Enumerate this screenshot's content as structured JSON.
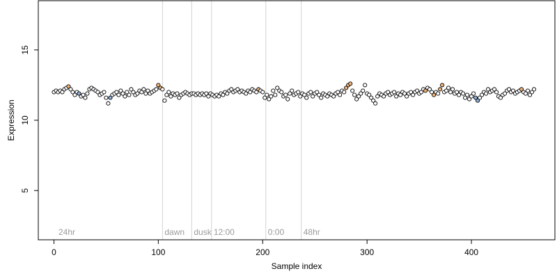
{
  "chart_data": {
    "type": "scatter",
    "xlabel": "Sample index",
    "ylabel": "Expression",
    "xlim": [
      -15,
      480
    ],
    "ylim": [
      1.5,
      18.5
    ],
    "xticks": [
      0,
      100,
      200,
      300,
      400
    ],
    "yticks": [
      5,
      10,
      15
    ],
    "grid": false,
    "legend": "none",
    "vertical_markers": [
      {
        "x": 104,
        "label": "dawn"
      },
      {
        "x": 132,
        "label": "dusk"
      },
      {
        "x": 151,
        "label": "12:00"
      },
      {
        "x": 203,
        "label": "0:00"
      },
      {
        "x": 237,
        "label": "48hr"
      }
    ],
    "corner_annotation": "24hr",
    "colors": {
      "normal": "#ffffff",
      "high": "#f4b77a",
      "low": "#8fb1dc",
      "marker_line": "#d3d3d3",
      "annotation_text": "#9a9a9a"
    },
    "points": [
      [
        0,
        12.0,
        "n"
      ],
      [
        2,
        12.1,
        "n"
      ],
      [
        4,
        12.0,
        "n"
      ],
      [
        6,
        12.1,
        "n"
      ],
      [
        8,
        12.0,
        "n"
      ],
      [
        10,
        12.2,
        "n"
      ],
      [
        12,
        12.3,
        "n"
      ],
      [
        14,
        12.4,
        "h"
      ],
      [
        16,
        12.2,
        "n"
      ],
      [
        18,
        12.0,
        "n"
      ],
      [
        20,
        11.8,
        "n"
      ],
      [
        22,
        12.0,
        "n"
      ],
      [
        24,
        11.9,
        "l"
      ],
      [
        26,
        11.7,
        "n"
      ],
      [
        28,
        11.8,
        "n"
      ],
      [
        30,
        11.6,
        "n"
      ],
      [
        32,
        11.9,
        "n"
      ],
      [
        34,
        12.2,
        "n"
      ],
      [
        36,
        12.3,
        "n"
      ],
      [
        38,
        12.2,
        "n"
      ],
      [
        40,
        12.1,
        "n"
      ],
      [
        42,
        12.0,
        "n"
      ],
      [
        44,
        11.8,
        "n"
      ],
      [
        46,
        11.9,
        "n"
      ],
      [
        48,
        12.0,
        "n"
      ],
      [
        50,
        11.6,
        "n"
      ],
      [
        52,
        11.2,
        "n"
      ],
      [
        54,
        11.6,
        "l"
      ],
      [
        56,
        11.8,
        "n"
      ],
      [
        58,
        11.9,
        "n"
      ],
      [
        60,
        12.0,
        "n"
      ],
      [
        62,
        11.8,
        "n"
      ],
      [
        64,
        12.1,
        "n"
      ],
      [
        66,
        11.9,
        "n"
      ],
      [
        68,
        11.7,
        "n"
      ],
      [
        70,
        12.0,
        "n"
      ],
      [
        72,
        11.8,
        "n"
      ],
      [
        74,
        12.2,
        "n"
      ],
      [
        76,
        12.0,
        "n"
      ],
      [
        78,
        11.8,
        "n"
      ],
      [
        80,
        11.9,
        "n"
      ],
      [
        82,
        12.1,
        "n"
      ],
      [
        84,
        12.0,
        "n"
      ],
      [
        86,
        12.2,
        "n"
      ],
      [
        88,
        11.9,
        "n"
      ],
      [
        90,
        12.1,
        "n"
      ],
      [
        92,
        11.9,
        "n"
      ],
      [
        94,
        12.0,
        "n"
      ],
      [
        96,
        12.1,
        "n"
      ],
      [
        98,
        12.2,
        "n"
      ],
      [
        100,
        12.5,
        "h"
      ],
      [
        102,
        12.3,
        "h"
      ],
      [
        104,
        12.2,
        "n"
      ],
      [
        106,
        11.4,
        "n"
      ],
      [
        108,
        11.8,
        "n"
      ],
      [
        110,
        12.0,
        "n"
      ],
      [
        112,
        11.7,
        "n"
      ],
      [
        114,
        11.9,
        "n"
      ],
      [
        116,
        11.8,
        "n"
      ],
      [
        118,
        11.9,
        "n"
      ],
      [
        120,
        11.6,
        "n"
      ],
      [
        122,
        11.8,
        "n"
      ],
      [
        124,
        11.9,
        "n"
      ],
      [
        126,
        12.0,
        "n"
      ],
      [
        128,
        11.9,
        "n"
      ],
      [
        130,
        11.8,
        "n"
      ],
      [
        132,
        11.9,
        "n"
      ],
      [
        134,
        11.9,
        "n"
      ],
      [
        136,
        11.8,
        "n"
      ],
      [
        138,
        11.9,
        "n"
      ],
      [
        140,
        11.8,
        "n"
      ],
      [
        142,
        11.9,
        "n"
      ],
      [
        144,
        11.8,
        "n"
      ],
      [
        146,
        11.9,
        "n"
      ],
      [
        148,
        11.7,
        "n"
      ],
      [
        150,
        11.9,
        "n"
      ],
      [
        152,
        11.8,
        "n"
      ],
      [
        154,
        11.7,
        "n"
      ],
      [
        156,
        11.8,
        "n"
      ],
      [
        158,
        11.7,
        "n"
      ],
      [
        160,
        11.9,
        "n"
      ],
      [
        162,
        11.8,
        "n"
      ],
      [
        164,
        12.0,
        "n"
      ],
      [
        166,
        11.9,
        "n"
      ],
      [
        168,
        12.1,
        "n"
      ],
      [
        170,
        12.2,
        "n"
      ],
      [
        172,
        12.0,
        "n"
      ],
      [
        174,
        12.1,
        "n"
      ],
      [
        176,
        12.2,
        "n"
      ],
      [
        178,
        12.0,
        "n"
      ],
      [
        180,
        12.1,
        "n"
      ],
      [
        182,
        12.0,
        "n"
      ],
      [
        184,
        11.9,
        "n"
      ],
      [
        186,
        12.1,
        "n"
      ],
      [
        188,
        12.0,
        "n"
      ],
      [
        190,
        12.2,
        "n"
      ],
      [
        192,
        12.1,
        "n"
      ],
      [
        194,
        12.0,
        "n"
      ],
      [
        196,
        12.2,
        "h"
      ],
      [
        198,
        12.1,
        "n"
      ],
      [
        200,
        12.0,
        "n"
      ],
      [
        202,
        11.6,
        "n"
      ],
      [
        204,
        11.8,
        "n"
      ],
      [
        206,
        11.5,
        "n"
      ],
      [
        208,
        11.7,
        "n"
      ],
      [
        210,
        12.1,
        "n"
      ],
      [
        212,
        11.8,
        "n"
      ],
      [
        214,
        12.3,
        "n"
      ],
      [
        216,
        12.1,
        "n"
      ],
      [
        218,
        12.0,
        "n"
      ],
      [
        220,
        11.7,
        "n"
      ],
      [
        222,
        11.8,
        "n"
      ],
      [
        224,
        11.5,
        "n"
      ],
      [
        226,
        11.9,
        "n"
      ],
      [
        228,
        12.1,
        "n"
      ],
      [
        230,
        11.8,
        "n"
      ],
      [
        232,
        11.9,
        "n"
      ],
      [
        234,
        12.0,
        "n"
      ],
      [
        236,
        11.7,
        "n"
      ],
      [
        238,
        11.9,
        "n"
      ],
      [
        240,
        11.8,
        "n"
      ],
      [
        242,
        11.6,
        "n"
      ],
      [
        244,
        11.9,
        "n"
      ],
      [
        246,
        12.0,
        "n"
      ],
      [
        248,
        11.7,
        "n"
      ],
      [
        250,
        11.9,
        "n"
      ],
      [
        252,
        12.0,
        "n"
      ],
      [
        254,
        11.8,
        "n"
      ],
      [
        256,
        11.6,
        "n"
      ],
      [
        258,
        11.9,
        "n"
      ],
      [
        260,
        11.8,
        "n"
      ],
      [
        262,
        11.7,
        "n"
      ],
      [
        264,
        11.9,
        "n"
      ],
      [
        266,
        11.8,
        "n"
      ],
      [
        268,
        11.7,
        "n"
      ],
      [
        270,
        11.9,
        "n"
      ],
      [
        272,
        12.0,
        "n"
      ],
      [
        274,
        11.8,
        "n"
      ],
      [
        276,
        12.1,
        "n"
      ],
      [
        278,
        12.0,
        "n"
      ],
      [
        280,
        12.3,
        "h"
      ],
      [
        282,
        12.5,
        "h"
      ],
      [
        284,
        12.6,
        "h"
      ],
      [
        286,
        12.1,
        "n"
      ],
      [
        288,
        11.8,
        "n"
      ],
      [
        290,
        11.5,
        "n"
      ],
      [
        292,
        11.7,
        "n"
      ],
      [
        294,
        11.9,
        "n"
      ],
      [
        296,
        12.1,
        "n"
      ],
      [
        298,
        12.5,
        "n"
      ],
      [
        300,
        11.9,
        "n"
      ],
      [
        302,
        11.8,
        "n"
      ],
      [
        304,
        11.6,
        "n"
      ],
      [
        306,
        11.4,
        "n"
      ],
      [
        308,
        11.2,
        "n"
      ],
      [
        310,
        11.7,
        "n"
      ],
      [
        312,
        11.9,
        "n"
      ],
      [
        314,
        11.8,
        "n"
      ],
      [
        316,
        11.7,
        "n"
      ],
      [
        318,
        11.9,
        "n"
      ],
      [
        320,
        12.0,
        "n"
      ],
      [
        322,
        11.8,
        "n"
      ],
      [
        324,
        11.9,
        "n"
      ],
      [
        326,
        12.0,
        "n"
      ],
      [
        328,
        11.7,
        "n"
      ],
      [
        330,
        11.9,
        "n"
      ],
      [
        332,
        11.8,
        "n"
      ],
      [
        334,
        12.0,
        "n"
      ],
      [
        336,
        11.9,
        "n"
      ],
      [
        338,
        11.7,
        "n"
      ],
      [
        340,
        11.9,
        "n"
      ],
      [
        342,
        12.0,
        "n"
      ],
      [
        344,
        11.8,
        "n"
      ],
      [
        346,
        12.0,
        "n"
      ],
      [
        348,
        12.1,
        "n"
      ],
      [
        350,
        11.9,
        "n"
      ],
      [
        352,
        12.0,
        "n"
      ],
      [
        354,
        12.2,
        "n"
      ],
      [
        356,
        12.1,
        "h"
      ],
      [
        358,
        12.3,
        "n"
      ],
      [
        360,
        12.2,
        "n"
      ],
      [
        362,
        12.0,
        "n"
      ],
      [
        364,
        11.8,
        "h"
      ],
      [
        366,
        12.0,
        "n"
      ],
      [
        368,
        11.9,
        "n"
      ],
      [
        370,
        12.2,
        "h"
      ],
      [
        372,
        12.5,
        "h"
      ],
      [
        374,
        12.0,
        "n"
      ],
      [
        376,
        12.1,
        "n"
      ],
      [
        378,
        12.3,
        "n"
      ],
      [
        380,
        12.0,
        "n"
      ],
      [
        382,
        12.2,
        "n"
      ],
      [
        384,
        11.9,
        "n"
      ],
      [
        386,
        12.0,
        "n"
      ],
      [
        388,
        11.8,
        "n"
      ],
      [
        390,
        12.0,
        "n"
      ],
      [
        392,
        11.9,
        "n"
      ],
      [
        394,
        11.6,
        "n"
      ],
      [
        396,
        11.8,
        "n"
      ],
      [
        398,
        11.5,
        "n"
      ],
      [
        400,
        11.7,
        "n"
      ],
      [
        402,
        11.9,
        "n"
      ],
      [
        404,
        11.6,
        "l"
      ],
      [
        406,
        11.4,
        "l"
      ],
      [
        408,
        11.6,
        "n"
      ],
      [
        410,
        11.8,
        "n"
      ],
      [
        412,
        12.0,
        "n"
      ],
      [
        414,
        11.9,
        "n"
      ],
      [
        416,
        12.2,
        "n"
      ],
      [
        418,
        12.0,
        "n"
      ],
      [
        420,
        12.1,
        "n"
      ],
      [
        422,
        12.2,
        "n"
      ],
      [
        424,
        12.0,
        "n"
      ],
      [
        426,
        11.7,
        "n"
      ],
      [
        428,
        11.6,
        "n"
      ],
      [
        430,
        11.8,
        "n"
      ],
      [
        432,
        11.9,
        "n"
      ],
      [
        434,
        12.1,
        "n"
      ],
      [
        436,
        12.2,
        "n"
      ],
      [
        438,
        12.0,
        "n"
      ],
      [
        440,
        12.1,
        "n"
      ],
      [
        442,
        11.9,
        "n"
      ],
      [
        444,
        12.0,
        "n"
      ],
      [
        446,
        12.1,
        "n"
      ],
      [
        448,
        12.2,
        "h"
      ],
      [
        450,
        12.0,
        "n"
      ],
      [
        452,
        11.9,
        "n"
      ],
      [
        454,
        12.1,
        "n"
      ],
      [
        456,
        11.8,
        "n"
      ],
      [
        458,
        12.0,
        "n"
      ],
      [
        460,
        12.2,
        "n"
      ]
    ]
  }
}
